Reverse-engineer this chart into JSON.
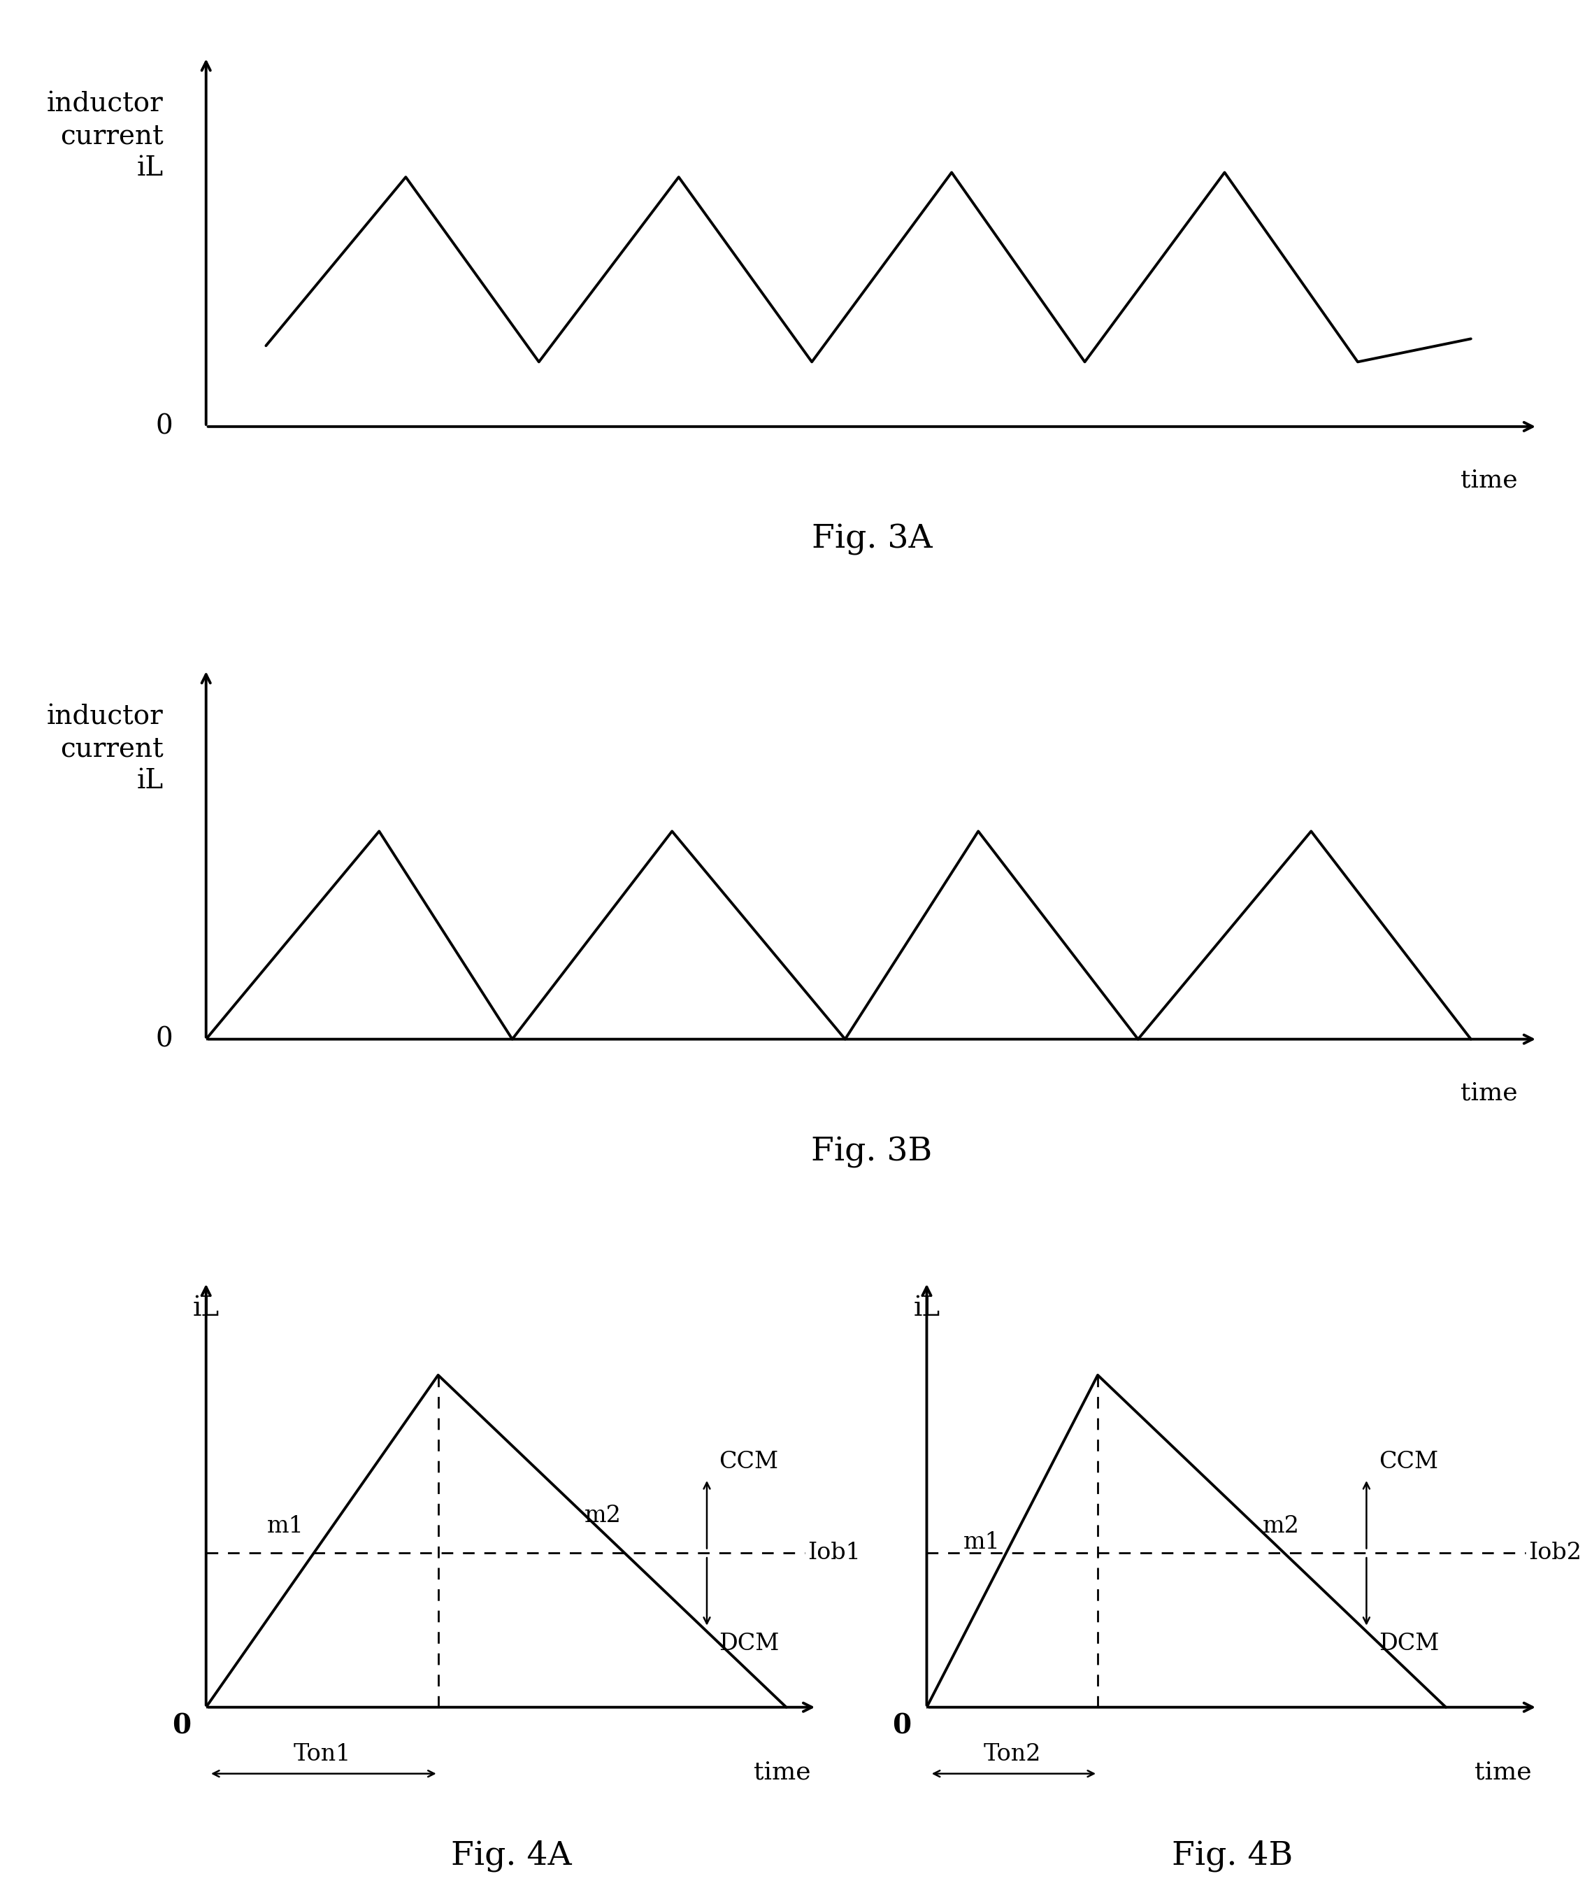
{
  "fig3A_title": "Fig. 3A",
  "fig3B_title": "Fig. 3B",
  "fig4A_title": "Fig. 4A",
  "fig4B_title": "Fig. 4B",
  "ylabel_line1": "inductor",
  "ylabel_line2": "current",
  "ylabel_line3": "iL",
  "ylabel_short": "iL",
  "xlabel": "time",
  "zero_label": "0",
  "ccm_label": "CCM",
  "dcm_label": "DCM",
  "iob1_label": "Iob1",
  "iob2_label": "Iob2",
  "m1_label": "m1",
  "m2_label": "m2",
  "ton1_label": "Ton1",
  "ton2_label": "Ton2",
  "background_color": "#ffffff",
  "line_color": "#000000",
  "lw_main": 2.8,
  "lw_dashed": 2.0,
  "fontsize_ylabel_big": 28,
  "fontsize_ylabel_label": 26,
  "fontsize_fig_title": 34,
  "fontsize_annot": 24,
  "fontsize_zero": 28
}
